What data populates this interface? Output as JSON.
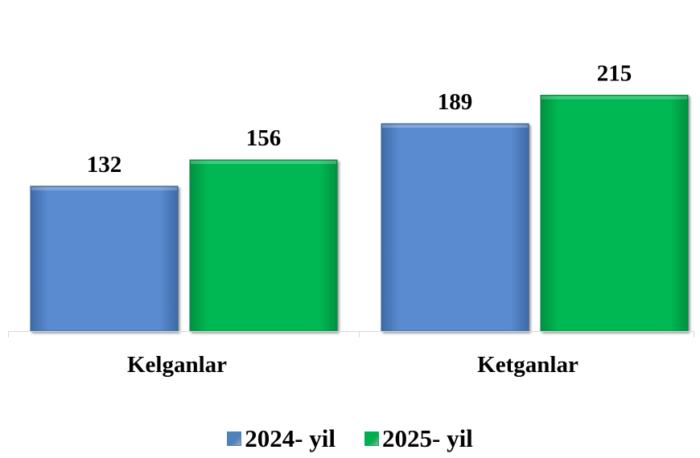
{
  "chart_data": {
    "type": "bar",
    "categories": [
      "Kelganlar",
      "Ketganlar"
    ],
    "series": [
      {
        "name": "2024- yil",
        "values": [
          132,
          189
        ],
        "color": "#4f81bd"
      },
      {
        "name": "2025- yil",
        "values": [
          156,
          215
        ],
        "color": "#00b050"
      }
    ],
    "title": "",
    "xlabel": "",
    "ylabel": "",
    "ylim": [
      0,
      240
    ],
    "grid": false,
    "legend": "bottom-center",
    "data_labels": true
  }
}
